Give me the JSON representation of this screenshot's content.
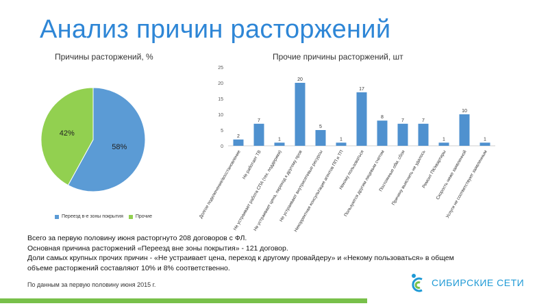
{
  "page": {
    "title": "Анализ причин расторжений",
    "summary_lines": [
      "Всего за первую половину июня расторгнуто 208 договоров с ФЛ.",
      "Основная причина расторжений «Переезд вне зоны покрытия» - 121 договор.",
      "Доли самых крупных прочих причин - «Не устраивает цена, переход к другому провайдеру» и «Некому пользоваться» в общем",
      "объеме расторжений составляют 10% и 8% соответственно."
    ],
    "source_note": "По данным за первую половину июня 2015 г.",
    "logo_text": "СИБИРСКИЕ СЕТИ"
  },
  "colors": {
    "title": "#2e86d6",
    "pie_blue": "#5b9bd5",
    "pie_green": "#92d050",
    "bar": "#4f91cf",
    "bottom_bar": "#78c04a",
    "logo": "#1f9ad6"
  },
  "chart_data": [
    {
      "type": "pie",
      "title": "Причины расторжений, %",
      "slices": [
        {
          "label": "Переезд вне зоны покрытия",
          "value": 58,
          "display": "58%"
        },
        {
          "label": "Прочие",
          "value": 42,
          "display": "42%"
        }
      ],
      "legend": [
        "Переезд в-е зоны покрытия",
        "Прочие"
      ],
      "legend_position": "bottom"
    },
    {
      "type": "bar",
      "title": "Прочие причины расторжений, шт",
      "categories": [
        "Долгое подключение/восстановление",
        "Не работает ТВ",
        "Не устраивает работа СПА (тех. поддержки)",
        "Не устраивает цена, переход к другому пров",
        "Не устраивают внутрисетевые ресурсы",
        "Некорректная консультация агентов ПП и ТП",
        "Некому пользоваться",
        "Пользуются другим лицевым счетом",
        "Постоянные обм. сбои",
        "Причину выяснить не удалось",
        "Ремонт ПК/квартиры",
        "Скорость ниже заявленной",
        "Услуги не соответствуют заявленным"
      ],
      "values": [
        2,
        7,
        1,
        20,
        5,
        1,
        17,
        8,
        7,
        7,
        1,
        10,
        1
      ],
      "yticks": [
        "0",
        "5",
        "10",
        "15",
        "20",
        "25"
      ],
      "ylim": [
        0,
        25
      ],
      "grid": false
    }
  ]
}
